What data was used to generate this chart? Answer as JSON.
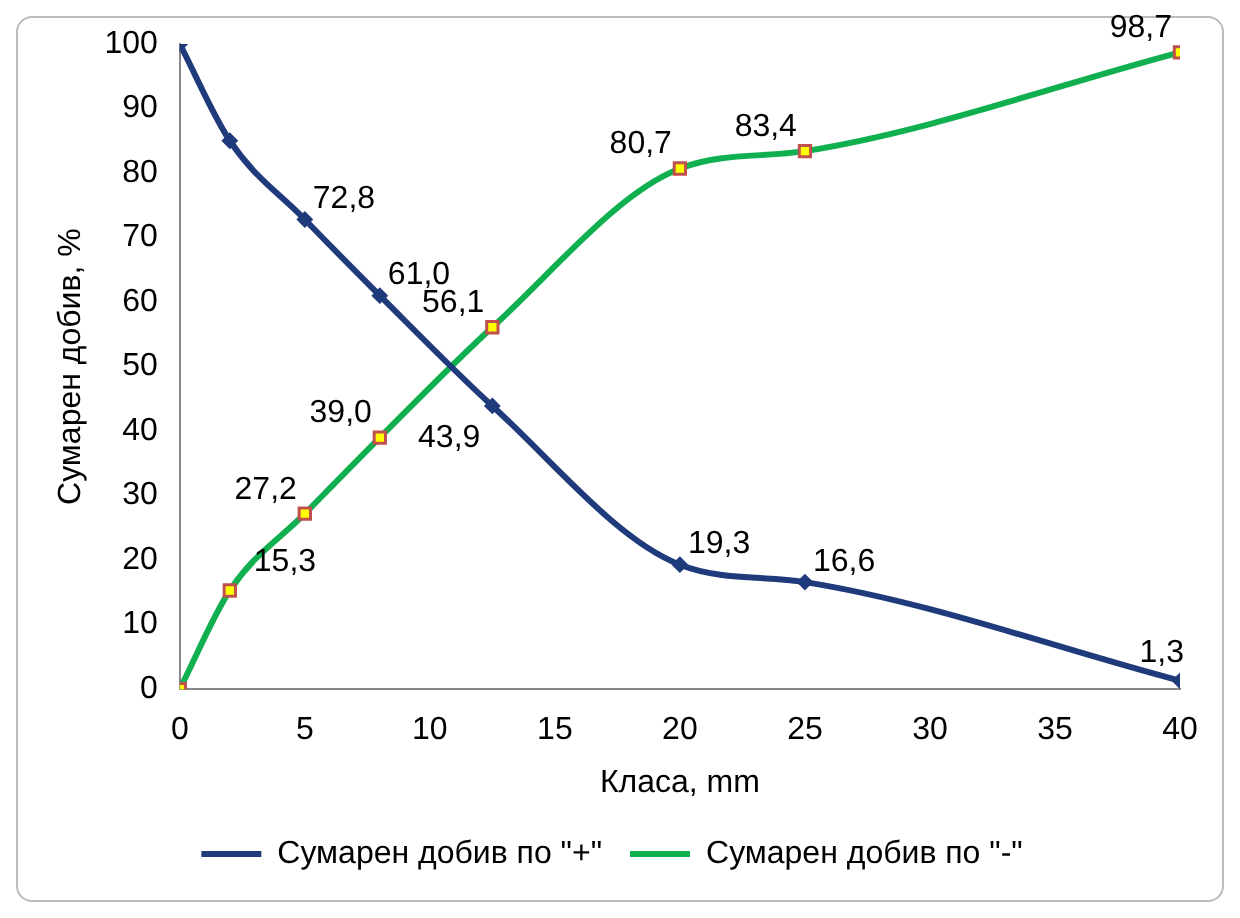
{
  "chart_data": {
    "type": "line",
    "xlabel": "Класа, mm",
    "ylabel": "Сумарен добив, %",
    "x": [
      0,
      2,
      5,
      8,
      12.5,
      20,
      25,
      40
    ],
    "series": [
      {
        "name": "Сумарен добив по \"+\"",
        "color": "#1f3b7c",
        "marker": "diamond",
        "values": [
          100,
          85,
          72.8,
          61.0,
          43.9,
          19.3,
          16.6,
          1.3
        ],
        "value_labels": [
          null,
          null,
          "72,8",
          "61,0",
          "43,9",
          "19,3",
          "16,6",
          "1,3"
        ]
      },
      {
        "name": "Сумарен добив по \"-\"",
        "color": "#10b050",
        "marker": "square",
        "values": [
          0,
          15.3,
          27.2,
          39.0,
          56.1,
          80.7,
          83.4,
          98.7
        ],
        "value_labels": [
          null,
          "15,3",
          "27,2",
          "39,0",
          "56,1",
          "80,7",
          "83,4",
          "98,7"
        ]
      }
    ],
    "xlim": [
      0,
      40
    ],
    "xticks": [
      0,
      5,
      10,
      15,
      20,
      25,
      30,
      35,
      40
    ],
    "ylim": [
      0,
      100
    ],
    "yticks": [
      0,
      10,
      20,
      30,
      40,
      50,
      60,
      70,
      80,
      90,
      100
    ],
    "grid": false,
    "legend": "bottom"
  }
}
